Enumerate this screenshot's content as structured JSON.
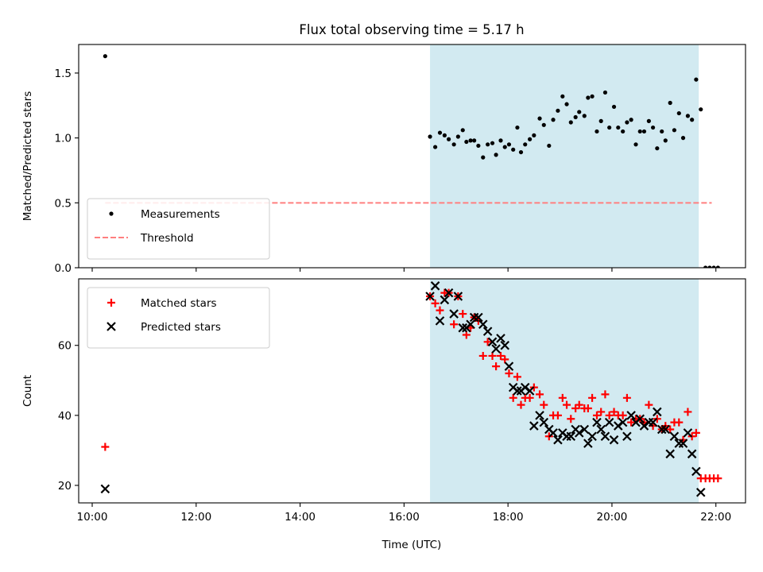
{
  "chart_data": {
    "title": "Flux total observing time = 5.17 h",
    "xlabel": "Time (UTC)",
    "x_units": "hours UTC",
    "xlim": [
      9.74,
      22.57
    ],
    "xticks": [
      {
        "value": 10,
        "label": "10:00"
      },
      {
        "value": 12,
        "label": "12:00"
      },
      {
        "value": 14,
        "label": "14:00"
      },
      {
        "value": 16,
        "label": "16:00"
      },
      {
        "value": 18,
        "label": "18:00"
      },
      {
        "value": 20,
        "label": "20:00"
      },
      {
        "value": 22,
        "label": "22:00"
      }
    ],
    "colors": {
      "measurements": "#000000",
      "threshold": "#ff7f7f",
      "matched": "#ff0000",
      "predicted": "#000000",
      "span": "#add8e6"
    },
    "span": [
      16.5,
      21.67
    ],
    "panels": [
      {
        "type": "scatter",
        "ylabel": "Matched/Predicted stars",
        "ylim": [
          0,
          1.72
        ],
        "yticks": [
          {
            "value": 0.0,
            "label": "0.0"
          },
          {
            "value": 0.5,
            "label": "0.5"
          },
          {
            "value": 1.0,
            "label": "1.0"
          },
          {
            "value": 1.5,
            "label": "1.5"
          }
        ],
        "legend": {
          "placement": "lower-left",
          "entries": [
            {
              "label": "Measurements",
              "marker": "dot"
            },
            {
              "label": "Threshold",
              "marker": "dashed-line"
            }
          ]
        },
        "threshold": {
          "name": "Threshold",
          "y": 0.5,
          "x_range": [
            10.25,
            21.92
          ]
        },
        "series": [
          {
            "name": "Measurements",
            "marker": "dot",
            "points": [
              [
                10.25,
                1.63
              ],
              [
                16.5,
                1.01
              ],
              [
                16.6,
                0.93
              ],
              [
                16.69,
                1.04
              ],
              [
                16.78,
                1.02
              ],
              [
                16.86,
                0.99
              ],
              [
                16.96,
                0.95
              ],
              [
                17.04,
                1.01
              ],
              [
                17.13,
                1.06
              ],
              [
                17.2,
                0.97
              ],
              [
                17.28,
                0.98
              ],
              [
                17.35,
                0.98
              ],
              [
                17.43,
                0.94
              ],
              [
                17.52,
                0.85
              ],
              [
                17.61,
                0.95
              ],
              [
                17.7,
                0.96
              ],
              [
                17.77,
                0.87
              ],
              [
                17.86,
                0.98
              ],
              [
                17.94,
                0.93
              ],
              [
                18.02,
                0.95
              ],
              [
                18.1,
                0.91
              ],
              [
                18.18,
                1.08
              ],
              [
                18.25,
                0.89
              ],
              [
                18.33,
                0.95
              ],
              [
                18.42,
                0.99
              ],
              [
                18.5,
                1.02
              ],
              [
                18.61,
                1.15
              ],
              [
                18.69,
                1.1
              ],
              [
                18.79,
                0.94
              ],
              [
                18.87,
                1.14
              ],
              [
                18.96,
                1.21
              ],
              [
                19.05,
                1.32
              ],
              [
                19.13,
                1.26
              ],
              [
                19.21,
                1.12
              ],
              [
                19.3,
                1.16
              ],
              [
                19.37,
                1.2
              ],
              [
                19.47,
                1.17
              ],
              [
                19.54,
                1.31
              ],
              [
                19.62,
                1.32
              ],
              [
                19.71,
                1.05
              ],
              [
                19.79,
                1.13
              ],
              [
                19.87,
                1.35
              ],
              [
                19.95,
                1.08
              ],
              [
                20.04,
                1.24
              ],
              [
                20.12,
                1.08
              ],
              [
                20.21,
                1.05
              ],
              [
                20.29,
                1.12
              ],
              [
                20.37,
                1.14
              ],
              [
                20.46,
                0.95
              ],
              [
                20.54,
                1.05
              ],
              [
                20.62,
                1.05
              ],
              [
                20.71,
                1.13
              ],
              [
                20.79,
                1.08
              ],
              [
                20.87,
                0.92
              ],
              [
                20.96,
                1.05
              ],
              [
                21.03,
                0.98
              ],
              [
                21.12,
                1.27
              ],
              [
                21.2,
                1.06
              ],
              [
                21.29,
                1.19
              ],
              [
                21.37,
                1.0
              ],
              [
                21.46,
                1.17
              ],
              [
                21.54,
                1.14
              ],
              [
                21.62,
                1.45
              ],
              [
                21.71,
                1.22
              ],
              [
                21.8,
                0.0
              ],
              [
                21.88,
                0.0
              ],
              [
                21.96,
                0.0
              ],
              [
                22.04,
                0.0
              ]
            ]
          }
        ]
      },
      {
        "type": "scatter",
        "ylabel": "Count",
        "ylim": [
          15,
          79
        ],
        "yticks": [
          {
            "value": 20,
            "label": "20"
          },
          {
            "value": 40,
            "label": "40"
          },
          {
            "value": 60,
            "label": "60"
          }
        ],
        "legend": {
          "placement": "top-left",
          "entries": [
            {
              "label": "Matched stars",
              "marker": "plus"
            },
            {
              "label": "Predicted stars",
              "marker": "x"
            }
          ]
        },
        "series": [
          {
            "name": "Matched stars",
            "marker": "plus",
            "points": [
              [
                10.25,
                31
              ],
              [
                16.5,
                74
              ],
              [
                16.6,
                72
              ],
              [
                16.69,
                70
              ],
              [
                16.78,
                75
              ],
              [
                16.86,
                75
              ],
              [
                16.96,
                66
              ],
              [
                17.04,
                74
              ],
              [
                17.13,
                69
              ],
              [
                17.2,
                63
              ],
              [
                17.28,
                65
              ],
              [
                17.35,
                68
              ],
              [
                17.43,
                67
              ],
              [
                17.52,
                57
              ],
              [
                17.61,
                61
              ],
              [
                17.7,
                57
              ],
              [
                17.77,
                54
              ],
              [
                17.86,
                57
              ],
              [
                17.94,
                56
              ],
              [
                18.02,
                52
              ],
              [
                18.1,
                45
              ],
              [
                18.18,
                51
              ],
              [
                18.25,
                43
              ],
              [
                18.33,
                45
              ],
              [
                18.42,
                45
              ],
              [
                18.5,
                48
              ],
              [
                18.61,
                46
              ],
              [
                18.69,
                43
              ],
              [
                18.79,
                34
              ],
              [
                18.87,
                40
              ],
              [
                18.96,
                40
              ],
              [
                19.05,
                45
              ],
              [
                19.13,
                43
              ],
              [
                19.21,
                39
              ],
              [
                19.3,
                42
              ],
              [
                19.37,
                43
              ],
              [
                19.47,
                42
              ],
              [
                19.54,
                42
              ],
              [
                19.62,
                45
              ],
              [
                19.71,
                40
              ],
              [
                19.79,
                41
              ],
              [
                19.87,
                46
              ],
              [
                19.95,
                40
              ],
              [
                20.04,
                41
              ],
              [
                20.12,
                40
              ],
              [
                20.21,
                40
              ],
              [
                20.29,
                45
              ],
              [
                20.37,
                38
              ],
              [
                20.46,
                39
              ],
              [
                20.54,
                39
              ],
              [
                20.62,
                38
              ],
              [
                20.71,
                43
              ],
              [
                20.79,
                37
              ],
              [
                20.87,
                39
              ],
              [
                20.96,
                36
              ],
              [
                21.03,
                37
              ],
              [
                21.12,
                36
              ],
              [
                21.2,
                38
              ],
              [
                21.29,
                38
              ],
              [
                21.37,
                33
              ],
              [
                21.46,
                41
              ],
              [
                21.54,
                34
              ],
              [
                21.62,
                35
              ],
              [
                21.71,
                22
              ],
              [
                21.8,
                22
              ],
              [
                21.88,
                22
              ],
              [
                21.96,
                22
              ],
              [
                22.04,
                22
              ]
            ]
          },
          {
            "name": "Predicted stars",
            "marker": "x",
            "points": [
              [
                10.25,
                19
              ],
              [
                16.5,
                74
              ],
              [
                16.6,
                77
              ],
              [
                16.69,
                67
              ],
              [
                16.78,
                73
              ],
              [
                16.86,
                75
              ],
              [
                16.96,
                69
              ],
              [
                17.04,
                74
              ],
              [
                17.13,
                65
              ],
              [
                17.2,
                65
              ],
              [
                17.28,
                66
              ],
              [
                17.35,
                68
              ],
              [
                17.43,
                68
              ],
              [
                17.52,
                66
              ],
              [
                17.61,
                64
              ],
              [
                17.7,
                61
              ],
              [
                17.77,
                59
              ],
              [
                17.86,
                62
              ],
              [
                17.94,
                60
              ],
              [
                18.02,
                54
              ],
              [
                18.1,
                48
              ],
              [
                18.18,
                47
              ],
              [
                18.25,
                47
              ],
              [
                18.33,
                48
              ],
              [
                18.42,
                47
              ],
              [
                18.5,
                37
              ],
              [
                18.61,
                40
              ],
              [
                18.69,
                38
              ],
              [
                18.79,
                36
              ],
              [
                18.87,
                35
              ],
              [
                18.96,
                33
              ],
              [
                19.05,
                35
              ],
              [
                19.13,
                34
              ],
              [
                19.21,
                34
              ],
              [
                19.3,
                36
              ],
              [
                19.37,
                35
              ],
              [
                19.47,
                36
              ],
              [
                19.54,
                32
              ],
              [
                19.62,
                34
              ],
              [
                19.71,
                38
              ],
              [
                19.79,
                36
              ],
              [
                19.87,
                34
              ],
              [
                19.95,
                38
              ],
              [
                20.04,
                33
              ],
              [
                20.12,
                37
              ],
              [
                20.21,
                38
              ],
              [
                20.29,
                34
              ],
              [
                20.37,
                40
              ],
              [
                20.46,
                38
              ],
              [
                20.54,
                39
              ],
              [
                20.62,
                37
              ],
              [
                20.71,
                38
              ],
              [
                20.79,
                38
              ],
              [
                20.87,
                41
              ],
              [
                20.96,
                36
              ],
              [
                21.03,
                36
              ],
              [
                21.12,
                29
              ],
              [
                21.2,
                34
              ],
              [
                21.29,
                32
              ],
              [
                21.37,
                32
              ],
              [
                21.46,
                35
              ],
              [
                21.54,
                29
              ],
              [
                21.62,
                24
              ],
              [
                21.71,
                18
              ]
            ]
          }
        ]
      }
    ]
  }
}
